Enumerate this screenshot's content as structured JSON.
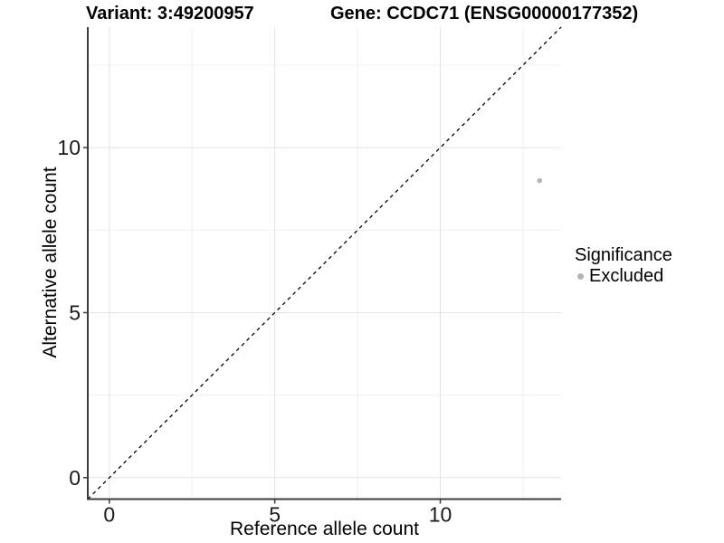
{
  "header": {
    "variant_title": "Variant: 3:49200957",
    "gene_title": "Gene: CCDC71 (ENSG00000177352)"
  },
  "chart_data": {
    "type": "scatter",
    "title_left": "Variant: 3:49200957",
    "title_right": "Gene: CCDC71 (ENSG00000177352)",
    "xlabel": "Reference allele count",
    "ylabel": "Alternative allele count",
    "xlim": [
      -0.65,
      13.65
    ],
    "ylim": [
      -0.65,
      13.65
    ],
    "x_major_ticks": {
      "values": [
        0,
        5,
        10
      ],
      "labels": [
        "0",
        "5",
        "10"
      ]
    },
    "y_major_ticks": {
      "values": [
        0,
        5,
        10
      ],
      "labels": [
        "0",
        "5",
        "10"
      ]
    },
    "x_minor_ticks": [
      2.5,
      7.5,
      12.5
    ],
    "y_minor_ticks": [
      2.5,
      7.5,
      12.5
    ],
    "grid": true,
    "legend_position": "right",
    "reference_line": {
      "kind": "identity",
      "equation": "y = x",
      "style": "dashed",
      "color": "#000000"
    },
    "series": [
      {
        "name": "Excluded",
        "color": "#b3b3b3",
        "points": [
          {
            "x": 13,
            "y": 9
          }
        ]
      }
    ],
    "legend": {
      "title": "Significance",
      "items": [
        {
          "label": "Excluded",
          "color": "#b3b3b3"
        }
      ]
    },
    "colors": {
      "background": "#ffffff",
      "grid_major": "#e3e3e3",
      "grid_minor": "#f0f0f0",
      "axis_line": "#3c3c3c",
      "tick_mark": "#3c3c3c",
      "tick_text": "#1a1a1a",
      "title_text": "#000000",
      "point": "#b3b3b3",
      "dashed_line": "#000000"
    }
  }
}
